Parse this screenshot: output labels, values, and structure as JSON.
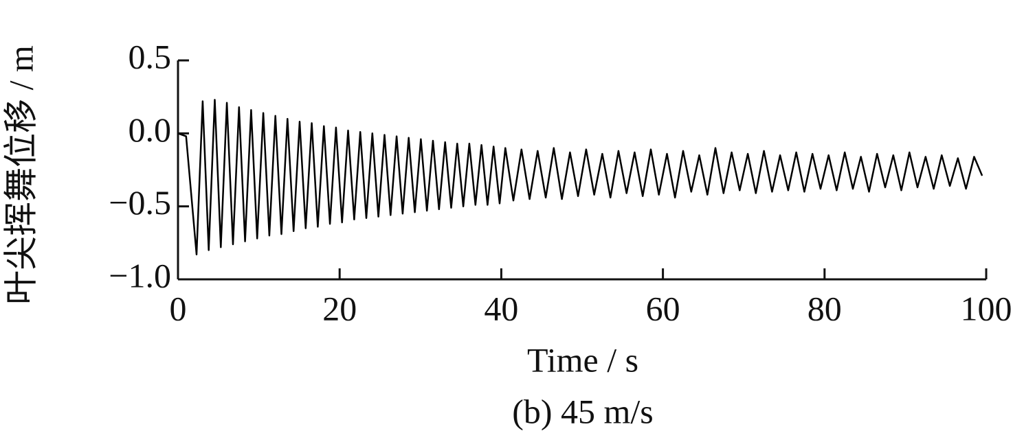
{
  "chart_data": {
    "type": "line",
    "caption": "(b) 45 m/s",
    "xlabel": "Time / s",
    "ylabel": "叶尖挥舞位移 / m",
    "xlim": [
      0,
      100
    ],
    "ylim": [
      -1.0,
      0.5
    ],
    "xticks": [
      0,
      20,
      40,
      60,
      80,
      100
    ],
    "yticks": [
      {
        "value": -1.0,
        "label": "−1.0"
      },
      {
        "value": -0.5,
        "label": "−0.5"
      },
      {
        "value": 0,
        "label": "0.0"
      },
      0.5
    ],
    "grid": false,
    "series": [
      {
        "color": "#000000",
        "x": [
          0,
          1,
          2.3,
          3.05,
          3.8,
          4.55,
          5.3,
          6.05,
          6.8,
          7.55,
          8.3,
          9.05,
          9.8,
          10.55,
          11.3,
          12.05,
          12.8,
          13.55,
          14.3,
          15.05,
          15.8,
          16.55,
          17.3,
          18.05,
          18.8,
          19.55,
          20.3,
          21.05,
          21.8,
          22.55,
          23.3,
          24.05,
          24.8,
          25.55,
          26.3,
          27.05,
          27.8,
          28.55,
          29.3,
          30.05,
          30.8,
          31.55,
          32.3,
          33.05,
          33.8,
          34.55,
          35.3,
          36.05,
          36.8,
          37.55,
          38.3,
          39.05,
          39.8,
          40.5,
          41.5,
          42.5,
          43.5,
          44.5,
          45.5,
          46.5,
          47.5,
          48.5,
          49.5,
          50.5,
          51.5,
          52.5,
          53.5,
          54.5,
          55.5,
          56.5,
          57.5,
          58.5,
          59.5,
          60.5,
          61.5,
          62.5,
          63.5,
          64.5,
          65.5,
          66.5,
          67.5,
          68.5,
          69.5,
          70.5,
          71.5,
          72.5,
          73.5,
          74.5,
          75.5,
          76.5,
          77.5,
          78.5,
          79.5,
          80.5,
          81.5,
          82.5,
          83.5,
          84.5,
          85.5,
          86.5,
          87.5,
          88.5,
          89.5,
          90.5,
          91.5,
          92.5,
          93.5,
          94.5,
          95.5,
          96.5,
          97.5,
          98.5,
          99.5
        ],
        "values": [
          0,
          -0.02,
          -0.83,
          0.22,
          -0.8,
          0.23,
          -0.78,
          0.21,
          -0.76,
          0.18,
          -0.74,
          0.16,
          -0.72,
          0.14,
          -0.7,
          0.12,
          -0.69,
          0.1,
          -0.67,
          0.08,
          -0.65,
          0.07,
          -0.64,
          0.05,
          -0.62,
          0.04,
          -0.61,
          0.02,
          -0.59,
          0.01,
          -0.58,
          0.0,
          -0.57,
          -0.01,
          -0.56,
          -0.02,
          -0.55,
          -0.03,
          -0.54,
          -0.04,
          -0.53,
          -0.05,
          -0.52,
          -0.06,
          -0.51,
          -0.07,
          -0.5,
          -0.07,
          -0.49,
          -0.08,
          -0.49,
          -0.09,
          -0.48,
          -0.1,
          -0.46,
          -0.11,
          -0.45,
          -0.12,
          -0.44,
          -0.1,
          -0.45,
          -0.13,
          -0.43,
          -0.11,
          -0.42,
          -0.14,
          -0.44,
          -0.12,
          -0.41,
          -0.13,
          -0.43,
          -0.11,
          -0.42,
          -0.14,
          -0.44,
          -0.12,
          -0.4,
          -0.15,
          -0.42,
          -0.1,
          -0.41,
          -0.13,
          -0.39,
          -0.14,
          -0.41,
          -0.12,
          -0.4,
          -0.15,
          -0.39,
          -0.13,
          -0.4,
          -0.14,
          -0.38,
          -0.15,
          -0.39,
          -0.13,
          -0.38,
          -0.16,
          -0.4,
          -0.14,
          -0.37,
          -0.15,
          -0.39,
          -0.13,
          -0.37,
          -0.16,
          -0.38,
          -0.15,
          -0.36,
          -0.17,
          -0.38,
          -0.16,
          -0.29
        ]
      }
    ]
  }
}
